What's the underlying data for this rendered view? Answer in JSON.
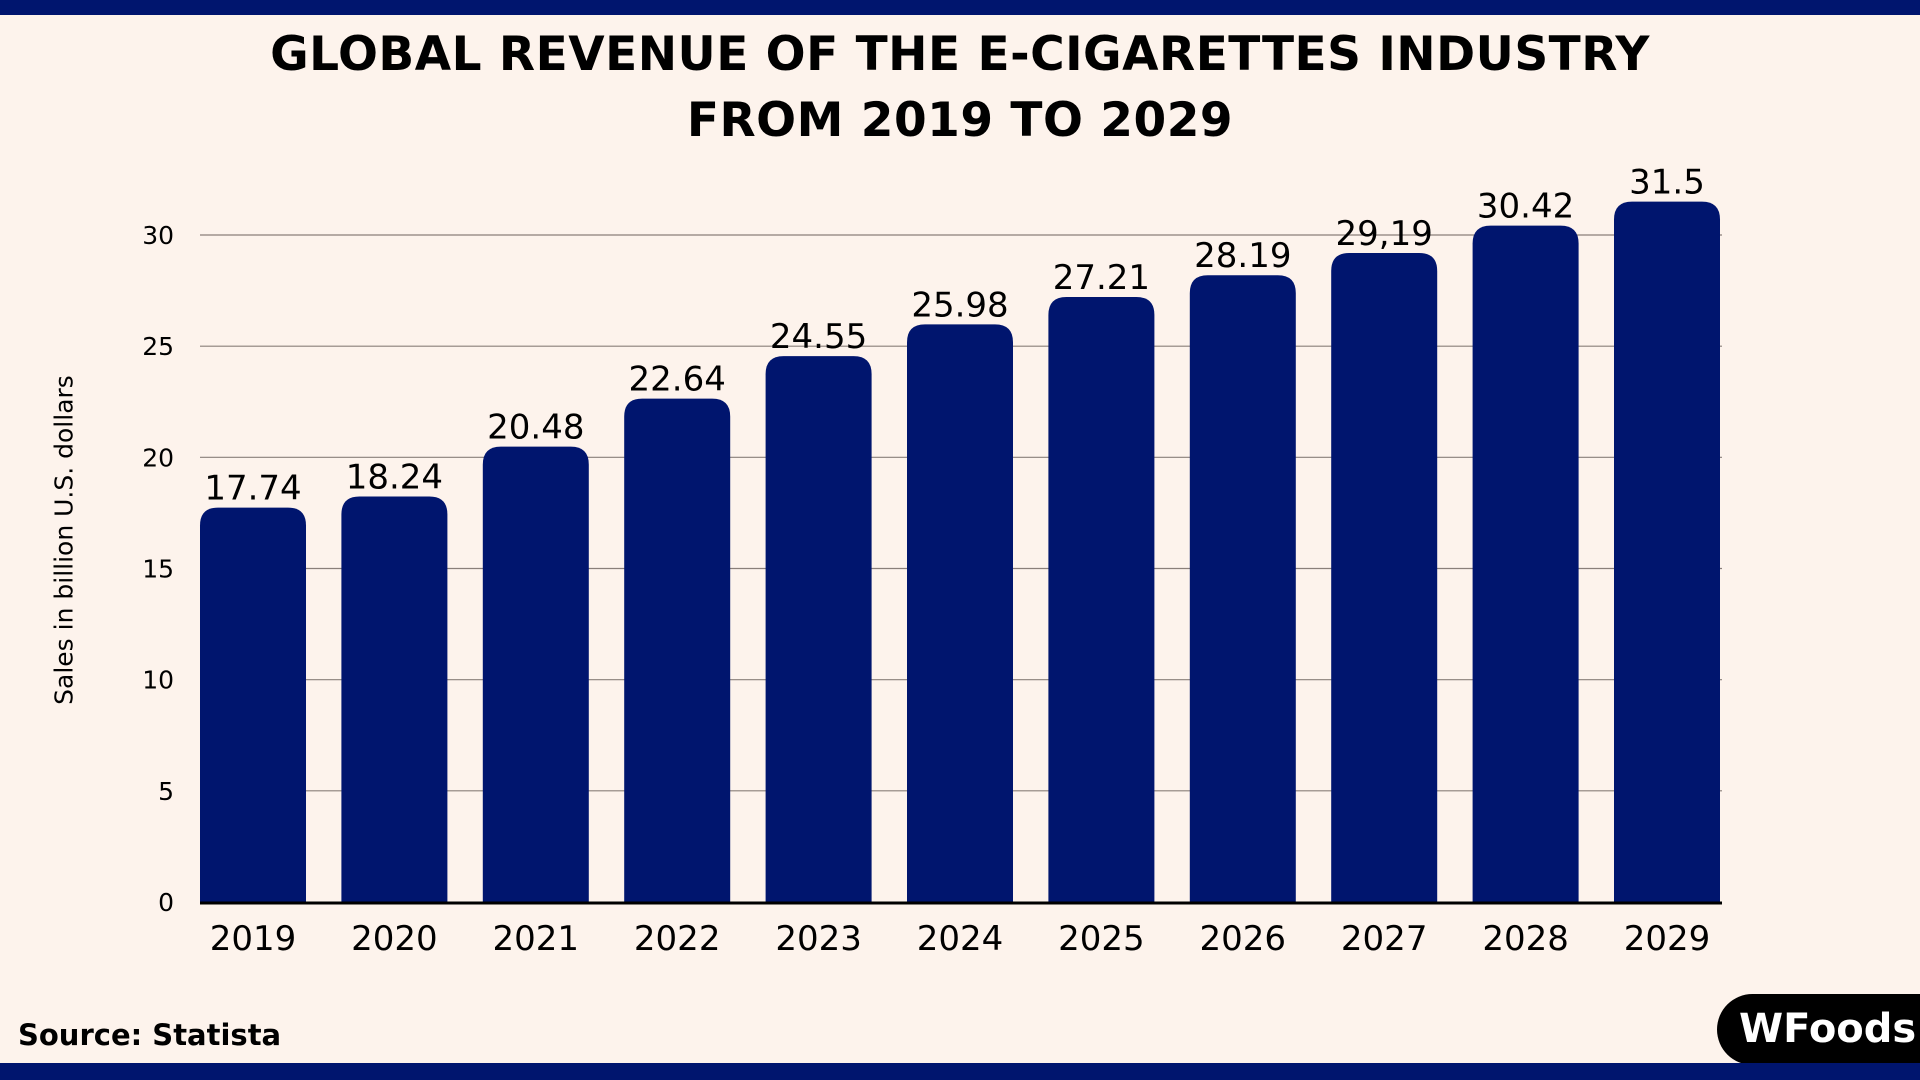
{
  "title_lines": [
    "GLOBAL REVENUE OF THE E-CIGARETTES INDUSTRY",
    "FROM 2019 TO 2029"
  ],
  "source": "Source: Statista",
  "logo_text": "WFoods",
  "colors": {
    "background": "#fdf3ec",
    "bar": "#00156e",
    "band": "#00156e",
    "grid": "#8a7f7a"
  },
  "chart_data": {
    "type": "bar",
    "title": "GLOBAL REVENUE OF THE E-CIGARETTES INDUSTRY FROM 2019 TO 2029",
    "xlabel": "",
    "ylabel": "Sales in billion U.S. dollars",
    "categories": [
      "2019",
      "2020",
      "2021",
      "2022",
      "2023",
      "2024",
      "2025",
      "2026",
      "2027",
      "2028",
      "2029"
    ],
    "values": [
      17.74,
      18.24,
      20.48,
      22.64,
      24.55,
      25.98,
      27.21,
      28.19,
      29.19,
      30.42,
      31.5
    ],
    "data_labels": [
      "17.74",
      "18.24",
      "20.48",
      "22.64",
      "24.55",
      "25.98",
      "27.21",
      "28.19",
      "29,19",
      "30.42",
      "31.5"
    ],
    "ylim": [
      0,
      30
    ],
    "yticks": [
      0,
      5,
      10,
      15,
      20,
      25,
      30
    ],
    "grid": true,
    "legend": "none"
  }
}
